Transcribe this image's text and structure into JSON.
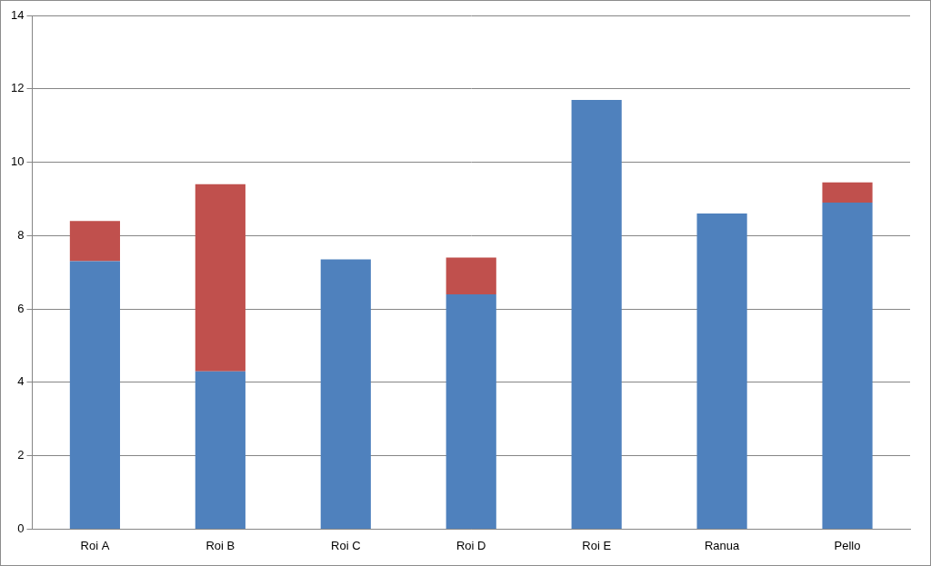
{
  "chart_data": {
    "type": "bar",
    "stacked": true,
    "grid": true,
    "categories": [
      "Roi A",
      "Roi B",
      "Roi C",
      "Roi D",
      "Roi E",
      "Ranua",
      "Pello"
    ],
    "series": [
      {
        "color": "#4f81bd",
        "values": [
          7.3,
          4.3,
          7.35,
          6.4,
          11.7,
          8.6,
          8.9
        ]
      },
      {
        "color": "#c0504d",
        "values": [
          1.1,
          5.1,
          null,
          1.0,
          null,
          null,
          0.55
        ]
      }
    ],
    "ylim": [
      0,
      14
    ],
    "yticks": [
      0,
      2,
      4,
      6,
      8,
      10,
      12,
      14
    ]
  }
}
